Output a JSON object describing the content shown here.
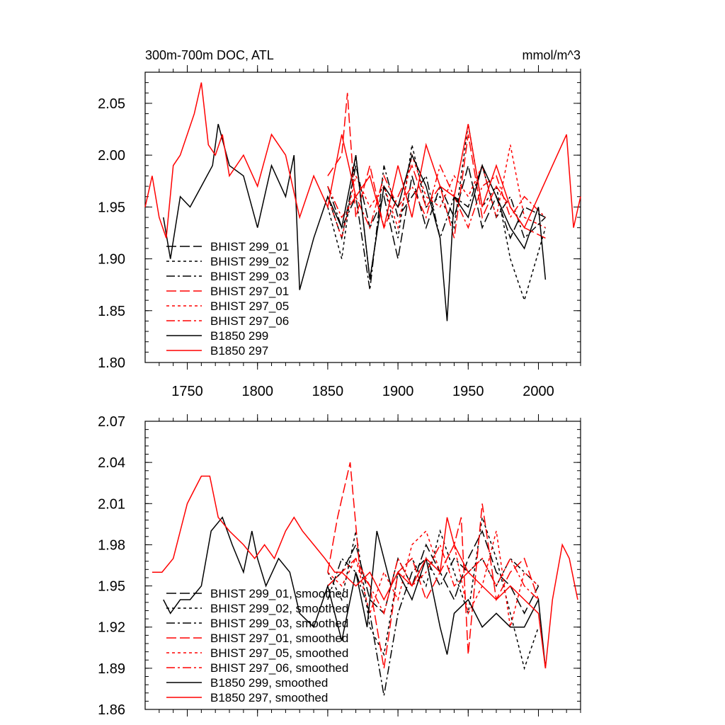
{
  "chart_data": [
    {
      "type": "line",
      "title_left": "300m-700m DOC, ATL",
      "title_right": "mmol/m^3",
      "xlim": [
        1720,
        2030
      ],
      "ylim": [
        1.8,
        2.08
      ],
      "xticks": [
        1750,
        1800,
        1850,
        1900,
        1950,
        2000
      ],
      "xtick_labels": [
        "1750",
        "1800",
        "1850",
        "1900",
        "1950",
        "2000"
      ],
      "yticks": [
        1.8,
        1.85,
        1.9,
        1.95,
        2.0,
        2.05
      ],
      "ytick_labels": [
        "1.80",
        "1.85",
        "1.90",
        "1.95",
        "2.00",
        "2.05"
      ],
      "legend": [
        "BHIST 299_01",
        "BHIST 299_02",
        "BHIST 299_03",
        "BHIST 297_01",
        "BHIST 297_05",
        "BHIST 297_06",
        "B1850 299",
        "B1850 297"
      ],
      "series": [
        {
          "name": "BHIST 299_01",
          "color": "#000000",
          "dash": "long",
          "x": [
            1850,
            1860,
            1870,
            1880,
            1890,
            1900,
            1910,
            1920,
            1930,
            1940,
            1950,
            1960,
            1970,
            1980,
            1990,
            2005
          ],
          "values": [
            1.96,
            1.92,
            1.99,
            1.93,
            1.96,
            1.9,
            1.98,
            1.93,
            1.97,
            1.94,
            1.99,
            1.93,
            1.96,
            1.92,
            1.95,
            1.94
          ]
        },
        {
          "name": "BHIST 299_02",
          "color": "#000000",
          "dash": "short",
          "x": [
            1850,
            1860,
            1870,
            1880,
            1890,
            1900,
            1910,
            1920,
            1930,
            1940,
            1950,
            1960,
            1970,
            1980,
            1990,
            2005
          ],
          "values": [
            1.95,
            1.9,
            2.0,
            1.88,
            1.97,
            1.92,
            2.01,
            1.95,
            1.96,
            1.93,
            2.03,
            1.95,
            1.97,
            1.9,
            1.86,
            1.93
          ]
        },
        {
          "name": "BHIST 299_03",
          "color": "#000000",
          "dash": "dashdot",
          "x": [
            1850,
            1860,
            1870,
            1880,
            1890,
            1900,
            1910,
            1920,
            1930,
            1940,
            1950,
            1960,
            1970,
            1980,
            1990,
            2005
          ],
          "values": [
            1.97,
            1.93,
            1.96,
            1.87,
            1.99,
            1.94,
            1.96,
            1.98,
            1.92,
            1.96,
            1.95,
            1.99,
            1.94,
            1.96,
            1.92,
            1.94
          ]
        },
        {
          "name": "BHIST 297_01",
          "color": "#ff0000",
          "dash": "long",
          "x": [
            1850,
            1860,
            1864,
            1870,
            1880,
            1890,
            1900,
            1910,
            1920,
            1930,
            1940,
            1950,
            1960,
            1970,
            1980,
            1990,
            2005
          ],
          "values": [
            1.98,
            2.0,
            2.06,
            1.94,
            1.99,
            1.93,
            1.96,
            1.99,
            1.95,
            1.97,
            1.92,
            2.02,
            1.94,
            1.97,
            1.95,
            1.93,
            1.92
          ]
        },
        {
          "name": "BHIST 297_05",
          "color": "#ff0000",
          "dash": "short",
          "x": [
            1850,
            1860,
            1870,
            1880,
            1890,
            1900,
            1910,
            1920,
            1930,
            1940,
            1950,
            1960,
            1970,
            1980,
            1990,
            2005
          ],
          "values": [
            1.96,
            1.92,
            1.98,
            1.95,
            1.97,
            1.93,
            2.0,
            1.96,
            1.95,
            1.98,
            1.96,
            1.99,
            1.94,
            2.01,
            1.94,
            1.93
          ]
        },
        {
          "name": "BHIST 297_06",
          "color": "#ff0000",
          "dash": "dashdot",
          "x": [
            1850,
            1860,
            1870,
            1880,
            1890,
            1900,
            1910,
            1920,
            1930,
            1940,
            1950,
            1960,
            1970,
            1980,
            1990,
            2005
          ],
          "values": [
            1.97,
            1.94,
            1.96,
            1.93,
            1.98,
            1.95,
            1.97,
            1.94,
            1.99,
            1.96,
            1.93,
            1.97,
            1.98,
            1.94,
            1.96,
            1.94
          ]
        },
        {
          "name": "B1850 299",
          "color": "#000000",
          "dash": "solid",
          "x": [
            1733,
            1738,
            1745,
            1752,
            1760,
            1768,
            1772,
            1780,
            1790,
            1800,
            1810,
            1820,
            1826,
            1830,
            1840,
            1850,
            1860,
            1870,
            1880,
            1890,
            1900,
            1910,
            1920,
            1930,
            1935,
            1940,
            1950,
            1960,
            1970,
            1980,
            1990,
            2000,
            2005
          ],
          "values": [
            1.94,
            1.9,
            1.96,
            1.95,
            1.97,
            1.99,
            2.03,
            1.99,
            1.98,
            1.93,
            1.99,
            1.96,
            2.0,
            1.87,
            1.92,
            1.96,
            1.93,
            2.0,
            1.88,
            1.97,
            1.95,
            2.0,
            1.97,
            1.92,
            1.84,
            1.96,
            1.94,
            1.99,
            1.96,
            1.93,
            1.91,
            1.95,
            1.88
          ]
        },
        {
          "name": "B1850 297",
          "color": "#ff0000",
          "dash": "solid",
          "x": [
            1720,
            1725,
            1730,
            1735,
            1740,
            1745,
            1750,
            1755,
            1760,
            1765,
            1770,
            1775,
            1780,
            1790,
            1800,
            1810,
            1820,
            1830,
            1840,
            1850,
            1860,
            1870,
            1880,
            1890,
            1900,
            1910,
            1920,
            1930,
            1940,
            1950,
            1960,
            1970,
            1980,
            1990,
            2000,
            2010,
            2020,
            2025,
            2030
          ],
          "values": [
            1.95,
            1.98,
            1.94,
            1.92,
            1.99,
            2.0,
            2.02,
            2.04,
            2.07,
            2.01,
            2.0,
            2.02,
            1.98,
            2.0,
            1.97,
            2.02,
            2.0,
            1.94,
            1.98,
            1.95,
            2.02,
            1.96,
            1.98,
            1.93,
            1.99,
            1.94,
            2.01,
            1.97,
            1.96,
            2.03,
            1.95,
            1.99,
            1.95,
            1.93,
            1.96,
            1.99,
            2.02,
            1.93,
            1.96
          ]
        }
      ]
    },
    {
      "type": "line",
      "xlim": [
        1720,
        2030
      ],
      "ylim": [
        1.86,
        2.07
      ],
      "xticks": [
        1750,
        1800,
        1850,
        1900,
        1950,
        2000
      ],
      "yticks": [
        1.86,
        1.89,
        1.92,
        1.95,
        1.98,
        2.01,
        2.04,
        2.07
      ],
      "ytick_labels": [
        "1.86",
        "1.89",
        "1.92",
        "1.95",
        "1.98",
        "2.01",
        "2.04",
        "2.07"
      ],
      "legend": [
        "BHIST 299_01, smoothed",
        "BHIST 299_02, smoothed",
        "BHIST 299_03, smoothed",
        "BHIST 297_01, smoothed",
        "BHIST 297_05, smoothed",
        "BHIST 297_06, smoothed",
        "B1850 299, smoothed",
        "B1850 297, smoothed"
      ],
      "series": [
        {
          "name": "BHIST 299_01, smoothed",
          "color": "#000000",
          "dash": "long",
          "x": [
            1850,
            1860,
            1870,
            1880,
            1890,
            1900,
            1910,
            1920,
            1930,
            1940,
            1950,
            1960,
            1970,
            1980,
            1990,
            2000
          ],
          "values": [
            1.95,
            1.96,
            1.98,
            1.94,
            1.93,
            1.97,
            1.95,
            1.98,
            1.96,
            1.94,
            1.97,
            1.99,
            1.96,
            1.95,
            1.93,
            1.95
          ]
        },
        {
          "name": "BHIST 299_02, smoothed",
          "color": "#000000",
          "dash": "short",
          "x": [
            1850,
            1860,
            1870,
            1880,
            1890,
            1900,
            1910,
            1920,
            1930,
            1940,
            1950,
            1960,
            1970,
            1980,
            1990,
            2000
          ],
          "values": [
            1.96,
            1.94,
            1.99,
            1.92,
            1.9,
            1.96,
            1.97,
            1.95,
            1.99,
            1.96,
            1.93,
            2.0,
            1.97,
            1.93,
            1.89,
            1.92
          ]
        },
        {
          "name": "BHIST 299_03, smoothed",
          "color": "#000000",
          "dash": "dashdot",
          "x": [
            1850,
            1860,
            1870,
            1880,
            1890,
            1900,
            1910,
            1920,
            1930,
            1940,
            1950,
            1960,
            1970,
            1980,
            1990,
            2000
          ],
          "values": [
            1.94,
            1.97,
            1.96,
            1.93,
            1.87,
            1.93,
            1.96,
            1.97,
            1.95,
            1.97,
            1.96,
            1.97,
            1.95,
            1.97,
            1.96,
            1.95
          ]
        },
        {
          "name": "BHIST 297_01, smoothed",
          "color": "#ff0000",
          "dash": "long",
          "x": [
            1850,
            1857,
            1866,
            1873,
            1880,
            1890,
            1900,
            1910,
            1920,
            1930,
            1940,
            1945,
            1950,
            1960,
            1970,
            1980,
            1990,
            2000
          ],
          "values": [
            1.96,
            2.0,
            2.04,
            1.96,
            1.95,
            1.89,
            1.96,
            1.97,
            1.94,
            1.96,
            1.98,
            2.0,
            1.9,
            2.01,
            1.94,
            1.96,
            1.97,
            1.94
          ]
        },
        {
          "name": "BHIST 297_05, smoothed",
          "color": "#ff0000",
          "dash": "short",
          "x": [
            1850,
            1860,
            1870,
            1880,
            1890,
            1900,
            1910,
            1920,
            1930,
            1940,
            1950,
            1960,
            1970,
            1980,
            1990,
            2000
          ],
          "values": [
            1.96,
            1.95,
            1.97,
            1.93,
            1.96,
            1.94,
            1.98,
            1.99,
            1.96,
            1.98,
            1.93,
            1.95,
            1.99,
            1.92,
            1.96,
            1.95
          ]
        },
        {
          "name": "BHIST 297_06, smoothed",
          "color": "#ff0000",
          "dash": "dashdot",
          "x": [
            1850,
            1860,
            1870,
            1880,
            1890,
            1900,
            1910,
            1920,
            1930,
            1940,
            1950,
            1960,
            1970,
            1980,
            1990,
            2000
          ],
          "values": [
            1.95,
            1.96,
            1.97,
            1.95,
            1.93,
            1.97,
            1.95,
            1.96,
            1.98,
            1.95,
            1.96,
            1.97,
            1.95,
            1.97,
            1.95,
            1.94
          ]
        },
        {
          "name": "B1850 299, smoothed",
          "color": "#000000",
          "dash": "solid",
          "x": [
            1733,
            1738,
            1745,
            1752,
            1760,
            1767,
            1775,
            1782,
            1790,
            1796,
            1800,
            1806,
            1815,
            1823,
            1830,
            1840,
            1850,
            1860,
            1870,
            1878,
            1885,
            1895,
            1900,
            1910,
            1920,
            1930,
            1935,
            1940,
            1950,
            1960,
            1970,
            1980,
            1990,
            2000,
            2005
          ],
          "values": [
            1.94,
            1.93,
            1.94,
            1.94,
            1.95,
            1.99,
            2.0,
            1.98,
            1.96,
            1.99,
            1.97,
            1.95,
            1.97,
            1.96,
            1.93,
            1.92,
            1.95,
            1.91,
            1.96,
            1.92,
            1.99,
            1.95,
            1.96,
            1.94,
            1.97,
            1.92,
            1.9,
            1.93,
            1.94,
            1.92,
            1.93,
            1.92,
            1.92,
            1.94,
            1.89
          ]
        },
        {
          "name": "B1850 297, smoothed",
          "color": "#ff0000",
          "dash": "solid",
          "x": [
            1725,
            1732,
            1740,
            1745,
            1750,
            1755,
            1760,
            1766,
            1772,
            1780,
            1790,
            1798,
            1805,
            1812,
            1820,
            1826,
            1832,
            1840,
            1848,
            1855,
            1860,
            1870,
            1880,
            1890,
            1900,
            1910,
            1920,
            1930,
            1935,
            1940,
            1950,
            1960,
            1970,
            1980,
            1990,
            2000,
            2005,
            2010,
            2017,
            2022,
            2028
          ],
          "values": [
            1.96,
            1.96,
            1.97,
            1.99,
            2.01,
            2.02,
            2.03,
            2.03,
            2.0,
            1.99,
            1.98,
            1.97,
            1.98,
            1.97,
            1.99,
            2.0,
            1.99,
            1.98,
            1.97,
            1.96,
            1.96,
            1.95,
            1.96,
            1.94,
            1.96,
            1.95,
            1.97,
            1.96,
            2.0,
            1.98,
            1.96,
            1.95,
            1.94,
            1.95,
            1.94,
            1.93,
            1.89,
            1.94,
            1.98,
            1.97,
            1.94
          ]
        }
      ]
    }
  ]
}
